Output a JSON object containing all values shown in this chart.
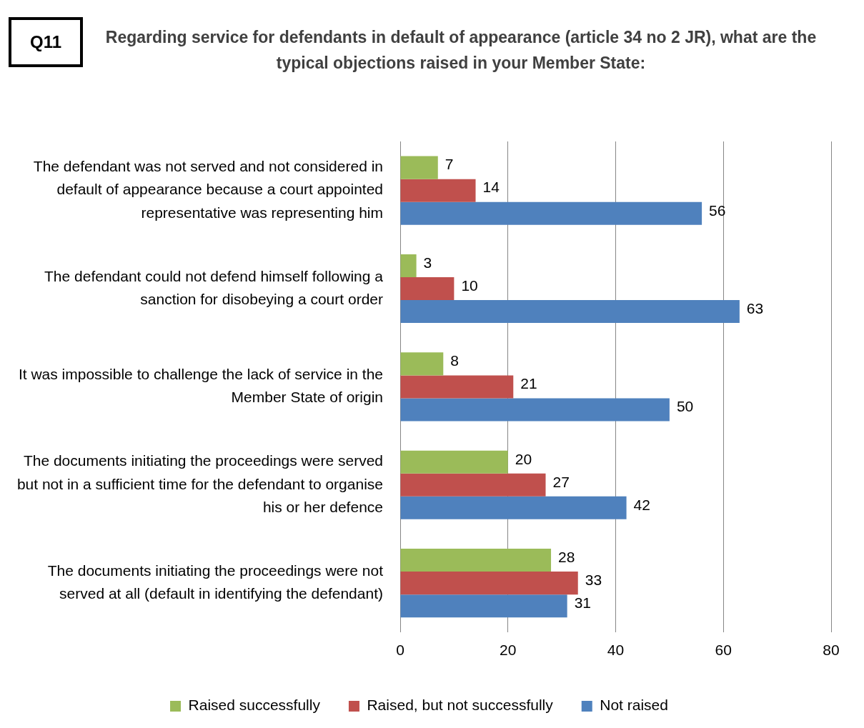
{
  "chart_data": {
    "type": "bar",
    "orientation": "horizontal",
    "title": "Regarding service for defendants in default of appearance (article 34 no 2 JR), what are the typical objections raised in your Member State:",
    "annotations": [
      "Q11"
    ],
    "categories": [
      "The defendant was not served and not considered in default of appearance because a court appointed representative was representing him",
      "The defendant could not defend himself following a sanction for disobeying a court order",
      "It was impossible to challenge the lack of service in the Member State of origin",
      "The documents initiating the proceedings were served but not in a sufficient time for the defendant to organise his or her defence",
      "The documents initiating the proceedings were not served at all (default in identifying the defendant)"
    ],
    "series": [
      {
        "name": "Raised successfully",
        "color": "#9bbb59",
        "values": [
          7,
          3,
          8,
          20,
          28
        ]
      },
      {
        "name": "Raised, but not successfully",
        "color": "#c0504d",
        "values": [
          14,
          10,
          21,
          27,
          33
        ]
      },
      {
        "name": "Not raised",
        "color": "#4f81bd",
        "values": [
          56,
          63,
          50,
          42,
          31
        ]
      }
    ],
    "xlim": [
      0,
      80
    ],
    "xticks": [
      0,
      20,
      40,
      60,
      80
    ],
    "grid": "x",
    "legend": "bottom",
    "data_labels": true
  }
}
